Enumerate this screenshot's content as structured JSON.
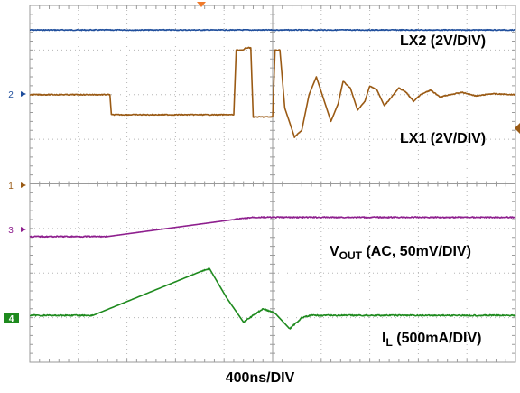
{
  "chart_data": {
    "type": "line",
    "grid": true,
    "time_scale": "400ns/DIV",
    "divisions": {
      "x": 10,
      "y": 8
    },
    "trigger_marker_color": "#f07a2a",
    "channels": [
      {
        "id": "ch2-top",
        "label_main": "LX2 (2V/DIV)",
        "label_sub": "",
        "label_tail": "",
        "marker": "",
        "marker_color": "#1f4e9c",
        "color": "#1f4e9c",
        "points": [
          [
            0,
            0.55
          ],
          [
            10,
            0.55
          ]
        ],
        "noise": 0.02
      },
      {
        "id": "lx1",
        "label_main": "LX1 (2V/DIV)",
        "label_sub": "",
        "label_tail": "",
        "marker": "2",
        "marker_color": "#1f4e9c",
        "color": "#9a5a14",
        "points": [
          [
            0,
            2.0
          ],
          [
            1.65,
            2.0
          ],
          [
            1.68,
            2.45
          ],
          [
            4.2,
            2.45
          ],
          [
            4.25,
            1.0
          ],
          [
            4.4,
            1.0
          ],
          [
            4.45,
            0.95
          ],
          [
            4.55,
            0.95
          ],
          [
            4.6,
            2.5
          ],
          [
            5.0,
            2.5
          ],
          [
            5.05,
            1.0
          ],
          [
            5.15,
            1.0
          ],
          [
            5.25,
            2.3
          ],
          [
            5.45,
            2.95
          ],
          [
            5.6,
            2.8
          ],
          [
            5.75,
            2.0
          ],
          [
            5.9,
            1.6
          ],
          [
            6.05,
            2.1
          ],
          [
            6.2,
            2.6
          ],
          [
            6.35,
            2.2
          ],
          [
            6.45,
            1.7
          ],
          [
            6.6,
            1.85
          ],
          [
            6.75,
            2.35
          ],
          [
            6.9,
            2.15
          ],
          [
            7.0,
            1.8
          ],
          [
            7.15,
            1.9
          ],
          [
            7.3,
            2.25
          ],
          [
            7.45,
            2.05
          ],
          [
            7.6,
            1.85
          ],
          [
            7.75,
            1.95
          ],
          [
            7.9,
            2.15
          ],
          [
            8.05,
            2.0
          ],
          [
            8.25,
            1.9
          ],
          [
            8.45,
            2.05
          ],
          [
            8.65,
            2.0
          ],
          [
            8.9,
            1.95
          ],
          [
            9.2,
            2.03
          ],
          [
            9.5,
            1.98
          ],
          [
            10,
            2.0
          ]
        ],
        "noise": 0.02
      },
      {
        "id": "vout",
        "label_main": "V",
        "label_sub": "OUT",
        "label_tail": " (AC, 50mV/DIV)",
        "marker": "3",
        "marker_color": "#8e1f8e",
        "color": "#8e1f8e",
        "points": [
          [
            0,
            5.18
          ],
          [
            1.6,
            5.18
          ],
          [
            4.2,
            4.8
          ],
          [
            4.6,
            4.75
          ],
          [
            10,
            4.75
          ]
        ],
        "noise": 0.025
      },
      {
        "id": "il",
        "label_main": "I",
        "label_sub": "L",
        "label_tail": " (500mA/DIV)",
        "marker": "4",
        "marker_color": "#1e8a1e",
        "color": "#1e8a1e",
        "points": [
          [
            0,
            6.95
          ],
          [
            1.3,
            6.95
          ],
          [
            3.55,
            5.95
          ],
          [
            3.7,
            5.9
          ],
          [
            4.05,
            6.55
          ],
          [
            4.4,
            7.1
          ],
          [
            4.8,
            6.8
          ],
          [
            5.05,
            6.9
          ],
          [
            5.35,
            7.25
          ],
          [
            5.6,
            7.0
          ],
          [
            5.8,
            6.95
          ],
          [
            10,
            6.95
          ]
        ],
        "noise": 0.03
      }
    ]
  }
}
